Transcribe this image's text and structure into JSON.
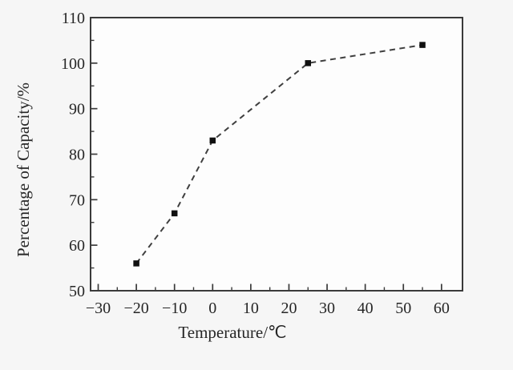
{
  "chart_data": {
    "type": "line",
    "title": "",
    "xlabel": "Temperature/℃",
    "ylabel": "Percentage of Capacity/%",
    "x": [
      -20,
      -10,
      0,
      25,
      55
    ],
    "y": [
      56,
      67,
      83,
      100,
      104
    ],
    "xlim": [
      -32,
      65.5
    ],
    "ylim": [
      50,
      110
    ],
    "x_ticks": [
      -30,
      -20,
      -10,
      0,
      10,
      20,
      30,
      40,
      50,
      60
    ],
    "x_tick_labels": [
      "−30",
      "−20",
      "−10",
      "0",
      "10",
      "20",
      "30",
      "40",
      "50",
      "60"
    ],
    "y_ticks": [
      50,
      60,
      70,
      80,
      90,
      100,
      110
    ],
    "y_tick_labels": [
      "50",
      "60",
      "70",
      "80",
      "90",
      "100",
      "110"
    ],
    "minor_tick_interval": 5,
    "line_style": "dashed",
    "marker": "filled-square",
    "grid": false,
    "legend": "none",
    "colors": {
      "line": "#3f3f3f",
      "marker": "#101010",
      "axis": "#3a3a3a",
      "text": "#262626",
      "figure_background": "#f6f6f6",
      "plot_background": "#fdfdfd"
    }
  }
}
